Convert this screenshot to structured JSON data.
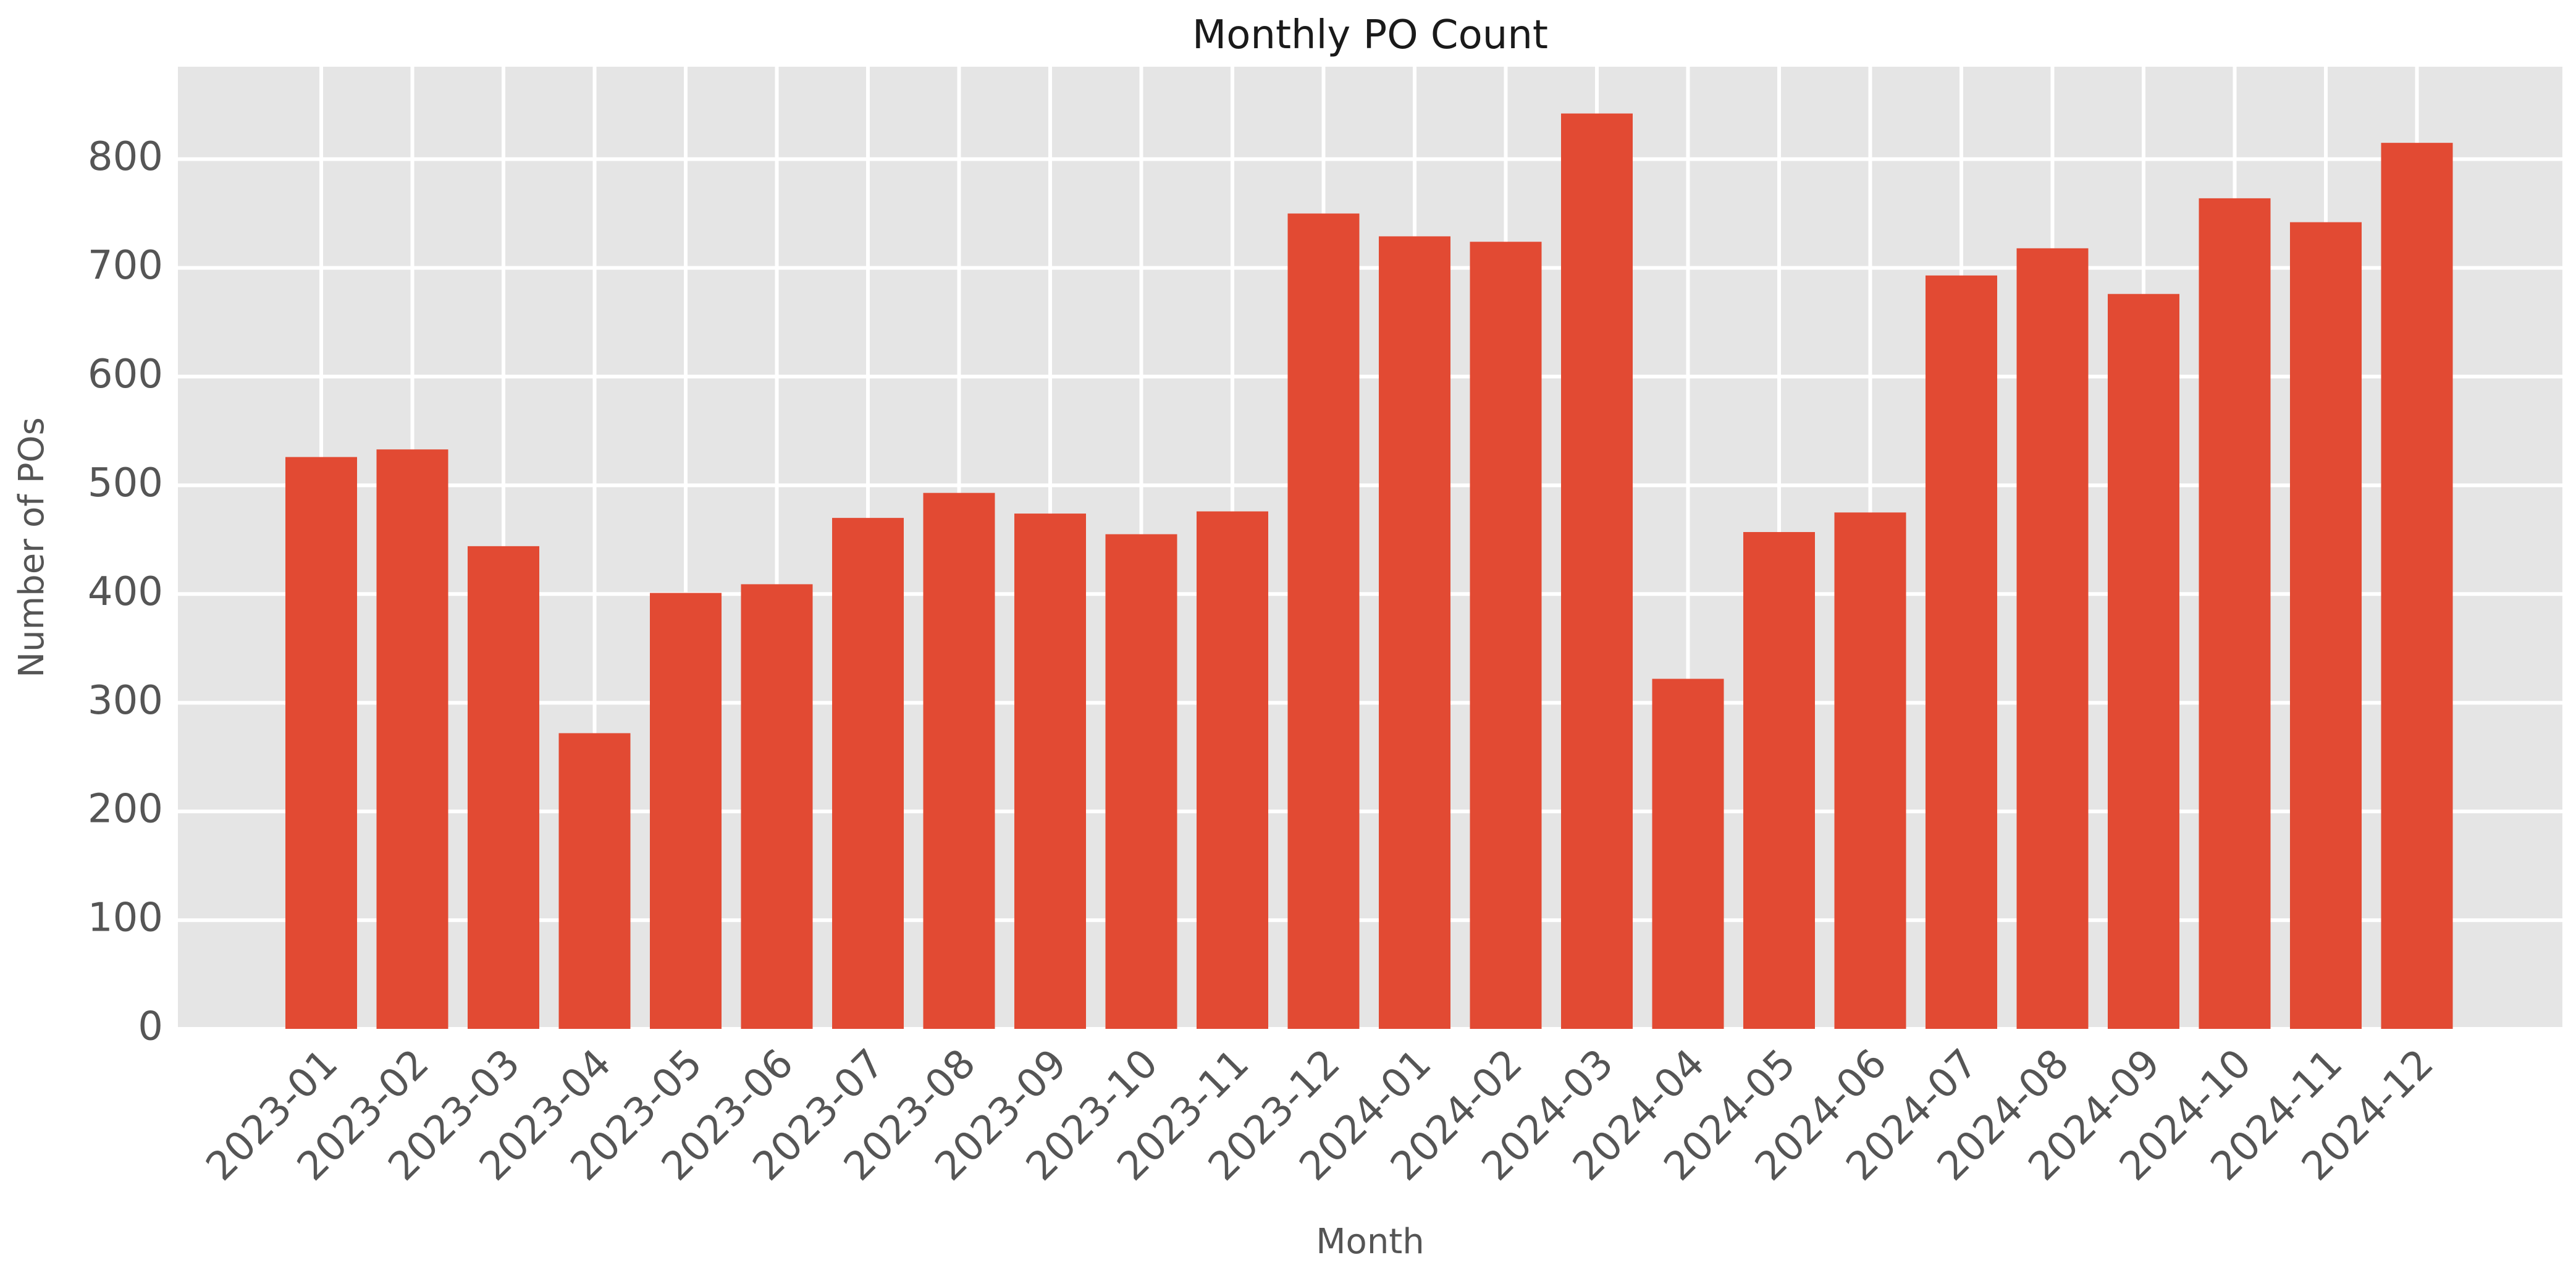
{
  "chart_data": {
    "type": "bar",
    "title": "Monthly PO Count",
    "xlabel": "Month",
    "ylabel": "Number of POs",
    "categories": [
      "2023-01",
      "2023-02",
      "2023-03",
      "2023-04",
      "2023-05",
      "2023-06",
      "2023-07",
      "2023-08",
      "2023-09",
      "2023-10",
      "2023-11",
      "2023-12",
      "2024-01",
      "2024-02",
      "2024-03",
      "2024-04",
      "2024-05",
      "2024-06",
      "2024-07",
      "2024-08",
      "2024-09",
      "2024-10",
      "2024-11",
      "2024-12"
    ],
    "values": [
      526,
      533,
      444,
      272,
      401,
      409,
      470,
      493,
      474,
      455,
      476,
      750,
      729,
      724,
      842,
      322,
      457,
      475,
      693,
      718,
      676,
      764,
      742,
      815
    ],
    "ylim": [
      0,
      885
    ],
    "yticks": [
      0,
      100,
      200,
      300,
      400,
      500,
      600,
      700,
      800
    ],
    "grid": true,
    "colors": {
      "bar": "#E24A33",
      "background": "#E5E5E5",
      "grid": "#FFFFFF"
    }
  }
}
